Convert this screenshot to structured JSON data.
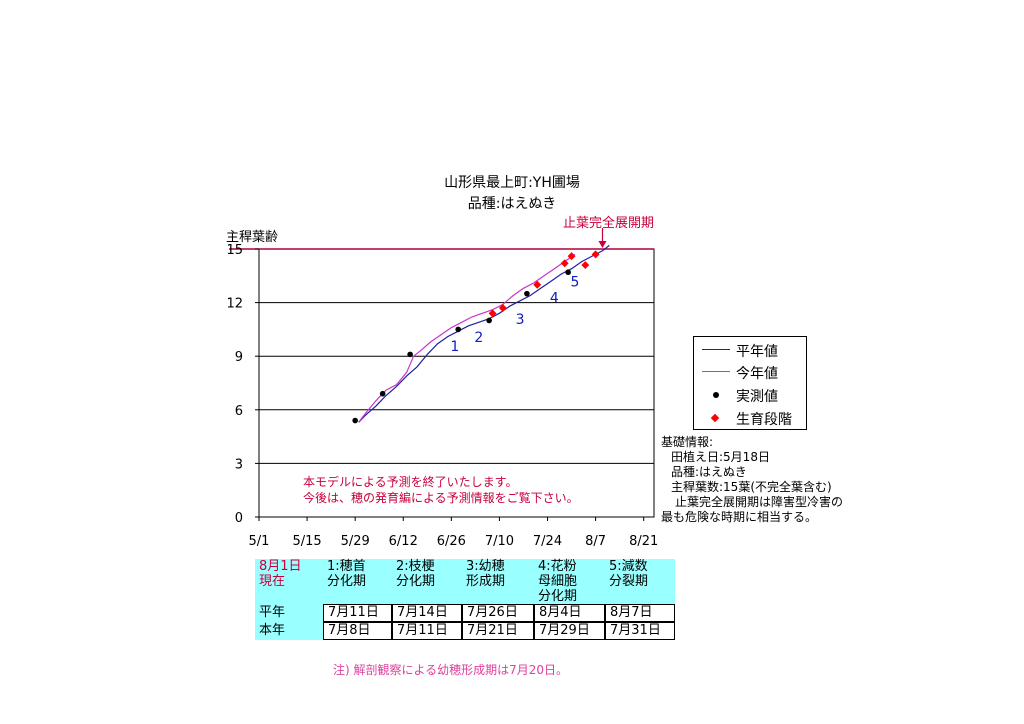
{
  "title": "山形県最上町:YH圃場",
  "subtitle": "品種:はえぬき",
  "ylabel": "主稈葉齢",
  "stop_label": "止葉完全展開期",
  "legend": [
    {
      "label": "平年値",
      "color": "#2020a0"
    },
    {
      "label": "今年値",
      "color": "#cc33cc"
    },
    {
      "label": "実測値",
      "color": "#000000"
    },
    {
      "label": "生育段階",
      "color": "#ff0000"
    }
  ],
  "info": {
    "heading": "基礎情報:",
    "planting": "田植え日:5月18日",
    "variety": "品種:はえぬき",
    "leaves": "主稈葉数:15葉(不完全葉含む)",
    "note1": "止葉完全展開期は障害型冷害の",
    "note2": "最も危険な時期に相当する。"
  },
  "notice": {
    "line1": "本モデルによる予測を終了いたします。",
    "line2": "今後は、穂の発育編による予測情報をご覧下さい。"
  },
  "footnote": "注) 解剖観察による幼穂形成期は7月20日。",
  "table": {
    "corner1": "8月1日",
    "corner2": "現在",
    "headers": [
      [
        "1:穂首",
        "分化期",
        ""
      ],
      [
        "2:枝梗",
        "分化期",
        ""
      ],
      [
        "3:幼穂",
        "形成期",
        ""
      ],
      [
        "4:花粉",
        "母細胞",
        "分化期"
      ],
      [
        "5:減数",
        "分裂期",
        ""
      ]
    ],
    "rows": [
      {
        "label": "平年",
        "values": [
          "7月11日",
          "7月14日",
          "7月26日",
          "8月4日",
          "8月7日"
        ]
      },
      {
        "label": "本年",
        "values": [
          "7月8日",
          "7月11日",
          "7月21日",
          "7月29日",
          "7月31日"
        ]
      }
    ]
  },
  "chart_data": {
    "type": "line",
    "x_tick_labels": [
      "5/1",
      "5/15",
      "5/29",
      "6/12",
      "6/26",
      "7/10",
      "7/24",
      "8/7",
      "8/21"
    ],
    "x_tick_dates": [
      "05-01",
      "05-15",
      "05-29",
      "06-12",
      "06-26",
      "07-10",
      "07-24",
      "08-07",
      "08-21"
    ],
    "y_ticks": [
      0,
      3,
      6,
      9,
      12,
      15
    ],
    "ylim": [
      0,
      15
    ],
    "xlim": [
      "05-01",
      "08-24"
    ],
    "ref_line": 15,
    "series": [
      {
        "name": "平年値",
        "color": "#2020a0",
        "x": [
          "05-30",
          "06-01",
          "06-04",
          "06-07",
          "06-10",
          "06-13",
          "06-16",
          "06-19",
          "06-22",
          "06-25",
          "06-28",
          "07-01",
          "07-04",
          "07-07",
          "07-10",
          "07-13",
          "07-16",
          "07-19",
          "07-22",
          "07-25",
          "07-28",
          "07-31",
          "08-03",
          "08-06",
          "08-09",
          "08-11"
        ],
        "y": [
          5.3,
          5.7,
          6.2,
          6.8,
          7.3,
          7.9,
          8.4,
          9.1,
          9.7,
          10.1,
          10.4,
          10.7,
          10.9,
          11.1,
          11.4,
          11.8,
          12.1,
          12.4,
          12.8,
          13.2,
          13.6,
          13.9,
          14.3,
          14.6,
          14.9,
          15.2
        ]
      },
      {
        "name": "今年値",
        "color": "#cc33cc",
        "x": [
          "05-30",
          "06-01",
          "06-04",
          "06-07",
          "06-10",
          "06-13",
          "06-15",
          "06-17",
          "06-20",
          "06-23",
          "06-26",
          "06-29",
          "07-02",
          "07-05",
          "07-08",
          "07-11",
          "07-14",
          "07-17",
          "07-20",
          "07-23",
          "07-26",
          "07-29",
          "08-01"
        ],
        "y": [
          5.3,
          5.8,
          6.5,
          7.1,
          7.4,
          8.1,
          9.0,
          9.3,
          9.8,
          10.2,
          10.6,
          10.9,
          11.2,
          11.4,
          11.6,
          11.9,
          12.4,
          12.8,
          13.1,
          13.5,
          13.9,
          14.3,
          14.7
        ]
      }
    ],
    "observed": {
      "name": "実測値",
      "x": [
        "05-29",
        "06-06",
        "06-14",
        "06-28",
        "07-07",
        "07-18",
        "07-30"
      ],
      "y": [
        5.4,
        6.9,
        9.1,
        10.5,
        11.0,
        12.5,
        13.7
      ]
    },
    "stages": {
      "name": "生育段階",
      "x": [
        "07-08",
        "07-11",
        "07-21",
        "07-29",
        "07-31",
        "08-04",
        "08-07"
      ],
      "y": [
        11.4,
        11.7,
        13.0,
        14.2,
        14.6,
        14.1,
        14.7
      ]
    },
    "stage_labels": [
      {
        "text": "1",
        "x": "06-27",
        "y": 9.3
      },
      {
        "text": "2",
        "x": "07-04",
        "y": 9.8
      },
      {
        "text": "3",
        "x": "07-16",
        "y": 10.8
      },
      {
        "text": "4",
        "x": "07-26",
        "y": 12.0
      },
      {
        "text": "5",
        "x": "08-01",
        "y": 12.9
      }
    ],
    "stop_arrow": {
      "x": "08-09",
      "y": 15
    }
  }
}
